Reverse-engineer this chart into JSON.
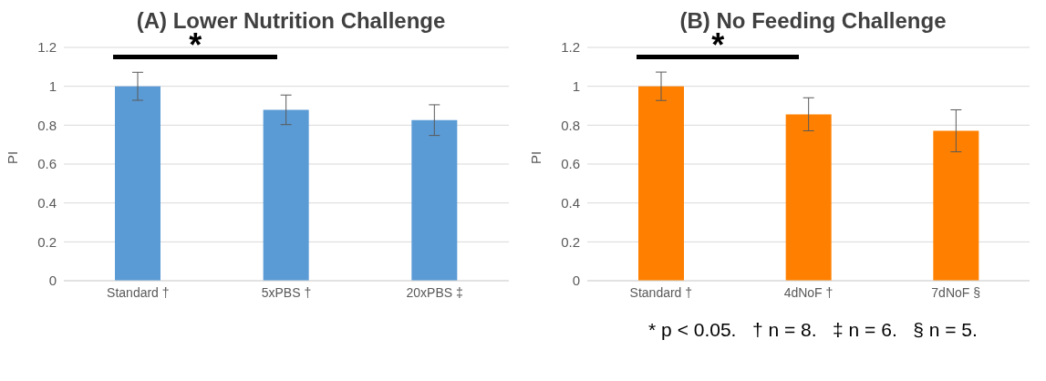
{
  "chart_data": [
    {
      "type": "bar",
      "title": "(A) Lower Nutrition Challenge",
      "ylabel": "PI",
      "categories": [
        "Standard †",
        "5xPBS †",
        "20xPBS ‡"
      ],
      "values": [
        1.0,
        0.879,
        0.826
      ],
      "errors": [
        0.072,
        0.076,
        0.079
      ],
      "color": "#5b9bd5",
      "ylim": [
        0,
        1.2
      ],
      "yticks": [
        0,
        0.2,
        0.4,
        0.6,
        0.8,
        1,
        1.2
      ],
      "grid": "y",
      "annotations": [
        "*"
      ]
    },
    {
      "type": "bar",
      "title": "(B) No Feeding Challenge",
      "ylabel": "PI",
      "categories": [
        "Standard †",
        "4dNoF †",
        "7dNoF §"
      ],
      "values": [
        1.0,
        0.856,
        0.771
      ],
      "errors": [
        0.073,
        0.085,
        0.108
      ],
      "color": "#ff8000",
      "ylim": [
        0,
        1.2
      ],
      "yticks": [
        0,
        0.2,
        0.4,
        0.6,
        0.8,
        1,
        1.2
      ],
      "grid": "y",
      "annotations": [
        "*",
        "* p < 0.05.   † n = 8.   ‡ n = 6.   § n = 5."
      ]
    }
  ]
}
